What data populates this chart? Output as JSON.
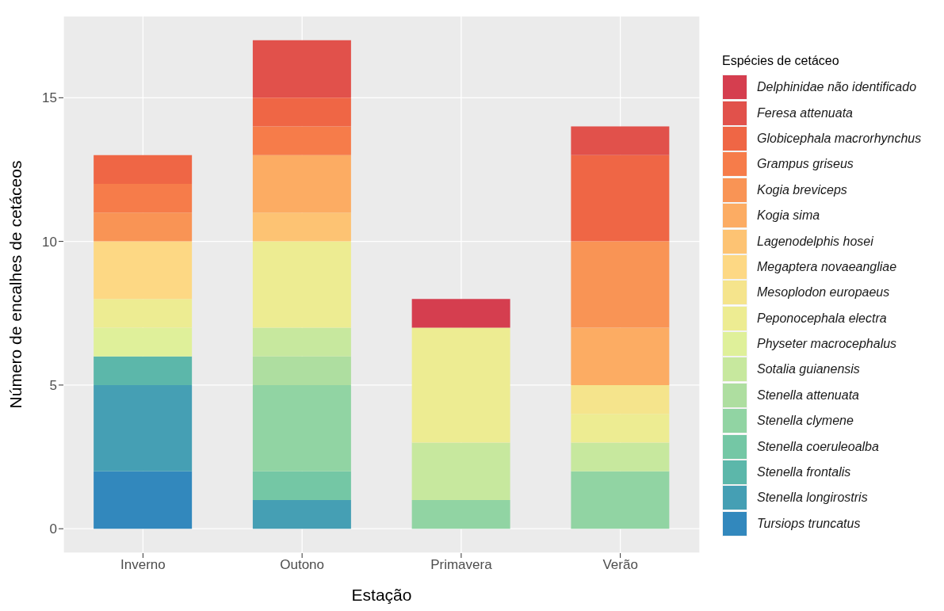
{
  "chart_data": {
    "type": "bar",
    "stacked": true,
    "xlabel": "Estação",
    "ylabel": "Número de encalhes de cetáceos",
    "legend_title": "Espécies de cetáceo",
    "legend": "right",
    "grid": true,
    "categories": [
      "Inverno",
      "Outono",
      "Primavera",
      "Verão"
    ],
    "ylim": [
      -0.85,
      17.85
    ],
    "yticks": [
      0,
      5,
      10,
      15
    ],
    "series": [
      {
        "name": "Tursiops truncatus",
        "color": "#3288bd",
        "values": [
          2,
          0,
          0,
          0
        ]
      },
      {
        "name": "Stenella longirostris",
        "color": "#459fb4",
        "values": [
          3,
          1,
          0,
          0
        ]
      },
      {
        "name": "Stenella frontalis",
        "color": "#5cb7aa",
        "values": [
          1,
          0,
          0,
          0
        ]
      },
      {
        "name": "Stenella coeruleoalba",
        "color": "#74c7a5",
        "values": [
          0,
          1,
          0,
          0
        ]
      },
      {
        "name": "Stenella clymene",
        "color": "#91d4a3",
        "values": [
          0,
          3,
          1,
          2
        ]
      },
      {
        "name": "Stenella attenuata",
        "color": "#aedea0",
        "values": [
          0,
          1,
          0,
          0
        ]
      },
      {
        "name": "Sotalia guianensis",
        "color": "#c7e89e",
        "values": [
          0,
          1,
          2,
          1
        ]
      },
      {
        "name": "Physeter macrocephalus",
        "color": "#dff09a",
        "values": [
          1,
          0,
          0,
          0
        ]
      },
      {
        "name": "Peponocephala electra",
        "color": "#edec92",
        "values": [
          1,
          3,
          4,
          1
        ]
      },
      {
        "name": "Mesoplodon europaeus",
        "color": "#f5e48c",
        "values": [
          0,
          0,
          0,
          1
        ]
      },
      {
        "name": "Megaptera novaeangliae",
        "color": "#fdd884",
        "values": [
          2,
          0,
          0,
          0
        ]
      },
      {
        "name": "Lagenodelphis hosei",
        "color": "#fdc373",
        "values": [
          0,
          1,
          0,
          0
        ]
      },
      {
        "name": "Kogia sima",
        "color": "#fcac63",
        "values": [
          0,
          2,
          0,
          2
        ]
      },
      {
        "name": "Kogia breviceps",
        "color": "#f99455",
        "values": [
          1,
          0,
          0,
          3
        ]
      },
      {
        "name": "Grampus griseus",
        "color": "#f67c4a",
        "values": [
          1,
          1,
          0,
          0
        ]
      },
      {
        "name": "Globicephala macrorhynchus",
        "color": "#ef6645",
        "values": [
          1,
          1,
          0,
          3
        ]
      },
      {
        "name": "Feresa attenuata",
        "color": "#e1514b",
        "values": [
          0,
          2,
          0,
          1
        ]
      },
      {
        "name": "Delphinidae não identificado",
        "color": "#d53e4f",
        "values": [
          0,
          0,
          1,
          0
        ]
      }
    ]
  }
}
